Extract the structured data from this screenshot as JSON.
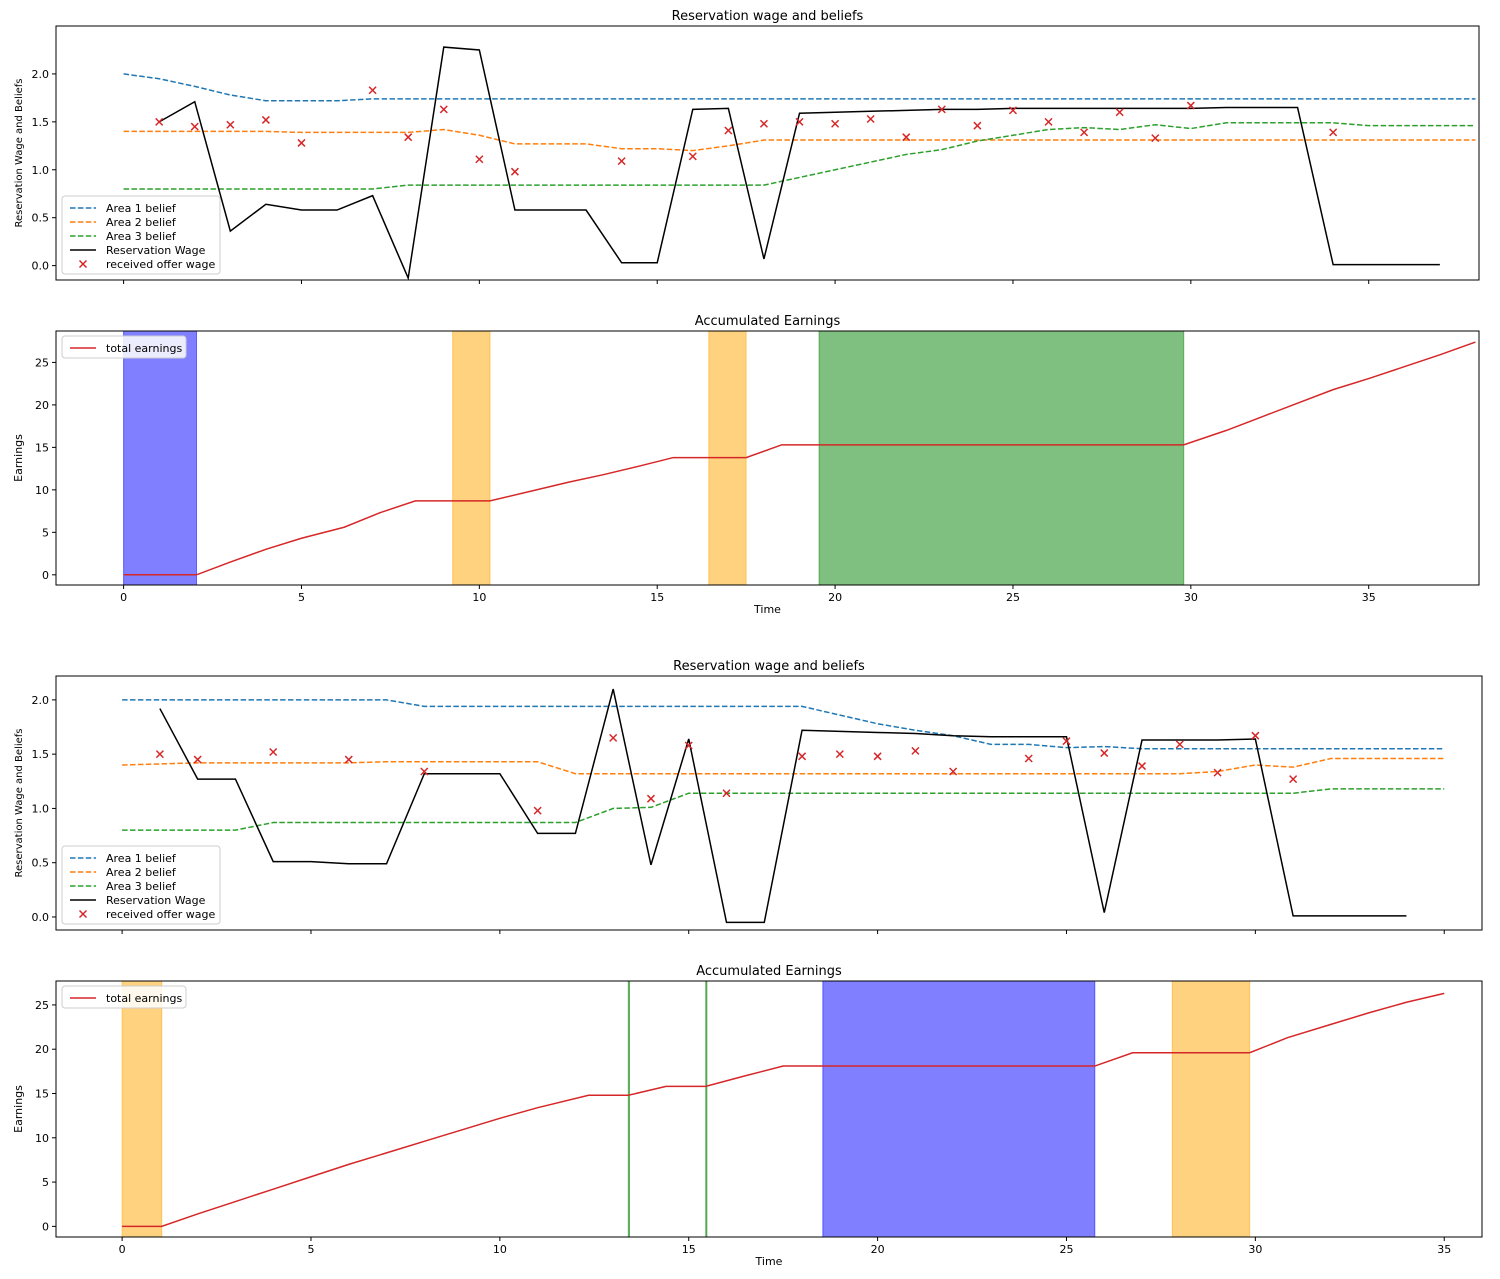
{
  "chart_data": [
    {
      "type": "line",
      "title": "Reservation wage and beliefs",
      "xlabel": "",
      "ylabel": "Reservation Wage and Beliefs",
      "xlim": [
        -1.9,
        38.1
      ],
      "ylim": [
        -0.15,
        2.5
      ],
      "xticks": [
        0,
        5,
        10,
        15,
        20,
        25,
        30,
        35
      ],
      "xtick_labels_shown": false,
      "yticks": [
        0.0,
        0.5,
        1.0,
        1.5,
        2.0
      ],
      "ytick_labels": [
        "0.0",
        "0.5",
        "1.0",
        "1.5",
        "2.0"
      ],
      "legend_position": "lower-left",
      "series": [
        {
          "name": "Area 1 belief",
          "style": "dashed",
          "color": "#1f77b4",
          "x": [
            0,
            1,
            2,
            3,
            4,
            5,
            6,
            7,
            8,
            9,
            10,
            11,
            12,
            13,
            14,
            15,
            16,
            17,
            18,
            19,
            20,
            21,
            22,
            23,
            24,
            25,
            26,
            27,
            28,
            29,
            30,
            31,
            32,
            33,
            34,
            35,
            36,
            37,
            38
          ],
          "y": [
            2.0,
            1.95,
            1.87,
            1.78,
            1.72,
            1.72,
            1.72,
            1.74,
            1.74,
            1.74,
            1.74,
            1.74,
            1.74,
            1.74,
            1.74,
            1.74,
            1.74,
            1.74,
            1.74,
            1.74,
            1.74,
            1.74,
            1.74,
            1.74,
            1.74,
            1.74,
            1.74,
            1.74,
            1.74,
            1.74,
            1.74,
            1.74,
            1.74,
            1.74,
            1.74,
            1.74,
            1.74,
            1.74,
            1.74
          ]
        },
        {
          "name": "Area 2 belief",
          "style": "dashed",
          "color": "#ff7f0e",
          "x": [
            0,
            1,
            2,
            3,
            4,
            5,
            6,
            7,
            8,
            9,
            10,
            11,
            12,
            13,
            14,
            15,
            16,
            17,
            18,
            19,
            20,
            21,
            22,
            23,
            24,
            25,
            26,
            27,
            28,
            29,
            30,
            31,
            32,
            33,
            34,
            35,
            36,
            37,
            38
          ],
          "y": [
            1.4,
            1.4,
            1.4,
            1.4,
            1.4,
            1.39,
            1.39,
            1.39,
            1.39,
            1.42,
            1.36,
            1.27,
            1.27,
            1.27,
            1.22,
            1.22,
            1.2,
            1.25,
            1.31,
            1.31,
            1.31,
            1.31,
            1.31,
            1.31,
            1.31,
            1.31,
            1.31,
            1.31,
            1.31,
            1.31,
            1.31,
            1.31,
            1.31,
            1.31,
            1.31,
            1.31,
            1.31,
            1.31,
            1.31
          ]
        },
        {
          "name": "Area 3 belief",
          "style": "dashed",
          "color": "#2ca02c",
          "x": [
            0,
            1,
            2,
            3,
            4,
            5,
            6,
            7,
            8,
            9,
            10,
            11,
            12,
            13,
            14,
            15,
            16,
            17,
            18,
            19,
            20,
            21,
            22,
            23,
            24,
            25,
            26,
            27,
            28,
            29,
            30,
            31,
            32,
            33,
            34,
            35,
            36,
            37,
            38
          ],
          "y": [
            0.8,
            0.8,
            0.8,
            0.8,
            0.8,
            0.8,
            0.8,
            0.8,
            0.84,
            0.84,
            0.84,
            0.84,
            0.84,
            0.84,
            0.84,
            0.84,
            0.84,
            0.84,
            0.84,
            0.92,
            1.0,
            1.08,
            1.16,
            1.21,
            1.3,
            1.36,
            1.42,
            1.44,
            1.42,
            1.47,
            1.43,
            1.49,
            1.49,
            1.49,
            1.49,
            1.46,
            1.46,
            1.46,
            1.46
          ]
        },
        {
          "name": "Reservation Wage",
          "style": "solid",
          "color": "#000000",
          "x": [
            1,
            2,
            3,
            4,
            5,
            6,
            7,
            8,
            9,
            10,
            11,
            12,
            13,
            14,
            15,
            16,
            17,
            18,
            19,
            20,
            21,
            22,
            23,
            24,
            25,
            26,
            27,
            28,
            29,
            30,
            31,
            32,
            33,
            34,
            35,
            36,
            37
          ],
          "y": [
            1.5,
            1.71,
            0.36,
            0.64,
            0.58,
            0.58,
            0.73,
            -0.13,
            2.28,
            2.25,
            0.58,
            0.58,
            0.58,
            0.03,
            0.03,
            1.63,
            1.64,
            0.07,
            1.59,
            1.6,
            1.61,
            1.62,
            1.63,
            1.63,
            1.64,
            1.64,
            1.64,
            1.64,
            1.64,
            1.64,
            1.65,
            1.65,
            1.65,
            0.01,
            0.01,
            0.01,
            0.01
          ]
        },
        {
          "name": "received offer wage",
          "style": "marker-x",
          "color": "#d62728",
          "x": [
            1,
            2,
            3,
            4,
            5,
            7,
            8,
            9,
            10,
            11,
            14,
            16,
            17,
            18,
            19,
            20,
            21,
            22,
            23,
            24,
            25,
            26,
            27,
            28,
            29,
            30,
            34
          ],
          "y": [
            1.5,
            1.45,
            1.47,
            1.52,
            1.28,
            1.83,
            1.34,
            1.63,
            1.11,
            0.98,
            1.09,
            1.14,
            1.41,
            1.48,
            1.5,
            1.48,
            1.53,
            1.34,
            1.63,
            1.46,
            1.62,
            1.5,
            1.39,
            1.6,
            1.33,
            1.67,
            1.39
          ]
        }
      ]
    },
    {
      "type": "line",
      "title": "Accumulated Earnings",
      "xlabel": "Time",
      "ylabel": "Earnings",
      "xlim": [
        -1.9,
        38.1
      ],
      "ylim": [
        -1.2,
        28.7
      ],
      "xticks": [
        0,
        5,
        10,
        15,
        20,
        25,
        30,
        35
      ],
      "xtick_labels": [
        "0",
        "5",
        "10",
        "15",
        "20",
        "25",
        "30",
        "35"
      ],
      "yticks": [
        0,
        5,
        10,
        15,
        20,
        25
      ],
      "ytick_labels": [
        "0",
        "5",
        "10",
        "15",
        "20",
        "25"
      ],
      "legend_position": "top-left",
      "shaded_spans": [
        {
          "x0": 0,
          "x1": 2.05,
          "color": "#0000ff",
          "alpha": 0.5
        },
        {
          "x0": 9.25,
          "x1": 10.3,
          "color": "#ffa500",
          "alpha": 0.5
        },
        {
          "x0": 16.45,
          "x1": 17.5,
          "color": "#ffa500",
          "alpha": 0.5
        },
        {
          "x0": 19.55,
          "x1": 29.8,
          "color": "#008000",
          "alpha": 0.5
        }
      ],
      "series": [
        {
          "name": "total earnings",
          "style": "solid",
          "color": "#d62728",
          "x": [
            0,
            2.05,
            3,
            4,
            5,
            6.2,
            7.2,
            8.2,
            9.25,
            10.3,
            11.5,
            12.5,
            13.5,
            14.5,
            15.45,
            16.45,
            17.5,
            18.5,
            19.55,
            29.8,
            31,
            32,
            33,
            34,
            35,
            36,
            37,
            38
          ],
          "y": [
            0,
            0,
            1.5,
            3.0,
            4.3,
            5.6,
            7.3,
            8.7,
            8.7,
            8.7,
            9.9,
            10.9,
            11.8,
            12.8,
            13.8,
            13.8,
            13.8,
            15.3,
            15.3,
            15.3,
            17.0,
            18.6,
            20.2,
            21.8,
            23.1,
            24.5,
            25.9,
            27.4
          ]
        }
      ]
    },
    {
      "type": "line",
      "title": "Reservation wage and beliefs",
      "xlabel": "",
      "ylabel": "Reservation Wage and Beliefs",
      "xlim": [
        -1.75,
        36.0
      ],
      "ylim": [
        -0.12,
        2.22
      ],
      "xticks": [
        0,
        5,
        10,
        15,
        20,
        25,
        30,
        35
      ],
      "xtick_labels_shown": false,
      "yticks": [
        0.0,
        0.5,
        1.0,
        1.5,
        2.0
      ],
      "ytick_labels": [
        "0.0",
        "0.5",
        "1.0",
        "1.5",
        "2.0"
      ],
      "legend_position": "lower-left",
      "series": [
        {
          "name": "Area 1 belief",
          "style": "dashed",
          "color": "#1f77b4",
          "x": [
            0,
            1,
            2,
            3,
            4,
            5,
            6,
            7,
            8,
            9,
            10,
            11,
            12,
            13,
            14,
            15,
            16,
            17,
            18,
            19,
            20,
            21,
            22,
            23,
            24,
            25,
            26,
            27,
            28,
            29,
            30,
            31,
            32,
            33,
            34,
            35
          ],
          "y": [
            2.0,
            2.0,
            2.0,
            2.0,
            2.0,
            2.0,
            2.0,
            2.0,
            1.94,
            1.94,
            1.94,
            1.94,
            1.94,
            1.94,
            1.94,
            1.94,
            1.94,
            1.94,
            1.94,
            1.86,
            1.78,
            1.72,
            1.67,
            1.59,
            1.59,
            1.56,
            1.57,
            1.55,
            1.55,
            1.55,
            1.55,
            1.55,
            1.55,
            1.55,
            1.55,
            1.55
          ]
        },
        {
          "name": "Area 2 belief",
          "style": "dashed",
          "color": "#ff7f0e",
          "x": [
            0,
            1,
            2,
            3,
            4,
            5,
            6,
            7,
            8,
            9,
            10,
            11,
            12,
            13,
            14,
            15,
            16,
            17,
            18,
            19,
            20,
            21,
            22,
            23,
            24,
            25,
            26,
            27,
            28,
            29,
            30,
            31,
            32,
            33,
            34,
            35
          ],
          "y": [
            1.4,
            1.41,
            1.42,
            1.42,
            1.42,
            1.42,
            1.42,
            1.43,
            1.43,
            1.43,
            1.43,
            1.43,
            1.32,
            1.32,
            1.32,
            1.32,
            1.32,
            1.32,
            1.32,
            1.32,
            1.32,
            1.32,
            1.32,
            1.32,
            1.32,
            1.32,
            1.32,
            1.32,
            1.32,
            1.34,
            1.4,
            1.38,
            1.46,
            1.46,
            1.46,
            1.46
          ]
        },
        {
          "name": "Area 3 belief",
          "style": "dashed",
          "color": "#2ca02c",
          "x": [
            0,
            1,
            2,
            3,
            4,
            5,
            6,
            7,
            8,
            9,
            10,
            11,
            12,
            13,
            14,
            15,
            16,
            17,
            18,
            19,
            20,
            21,
            22,
            23,
            24,
            25,
            26,
            27,
            28,
            29,
            30,
            31,
            32,
            33,
            34,
            35
          ],
          "y": [
            0.8,
            0.8,
            0.8,
            0.8,
            0.87,
            0.87,
            0.87,
            0.87,
            0.87,
            0.87,
            0.87,
            0.87,
            0.87,
            1.0,
            1.01,
            1.14,
            1.14,
            1.14,
            1.14,
            1.14,
            1.14,
            1.14,
            1.14,
            1.14,
            1.14,
            1.14,
            1.14,
            1.14,
            1.14,
            1.14,
            1.14,
            1.14,
            1.18,
            1.18,
            1.18,
            1.18
          ]
        },
        {
          "name": "Reservation Wage",
          "style": "solid",
          "color": "#000000",
          "x": [
            1,
            2,
            3,
            4,
            5,
            6,
            7,
            8,
            9,
            10,
            11,
            12,
            13,
            14,
            15,
            16,
            17,
            18,
            19,
            20,
            21,
            22,
            23,
            24,
            25,
            26,
            27,
            28,
            29,
            30,
            31,
            32,
            33,
            34
          ],
          "y": [
            1.92,
            1.27,
            1.27,
            0.51,
            0.51,
            0.49,
            0.49,
            1.32,
            1.32,
            1.32,
            0.77,
            0.77,
            2.1,
            0.48,
            1.64,
            -0.05,
            -0.05,
            1.72,
            1.71,
            1.7,
            1.69,
            1.67,
            1.66,
            1.66,
            1.66,
            0.04,
            1.63,
            1.63,
            1.63,
            1.64,
            0.01,
            0.01,
            0.01,
            0.01
          ]
        },
        {
          "name": "received offer wage",
          "style": "marker-x",
          "color": "#d62728",
          "x": [
            1,
            2,
            4,
            6,
            8,
            11,
            13,
            14,
            15,
            16,
            18,
            19,
            20,
            21,
            22,
            24,
            25,
            26,
            27,
            28,
            29,
            30,
            31
          ],
          "y": [
            1.5,
            1.45,
            1.52,
            1.45,
            1.34,
            0.98,
            1.65,
            1.09,
            1.58,
            1.14,
            1.48,
            1.5,
            1.48,
            1.53,
            1.34,
            1.46,
            1.62,
            1.51,
            1.39,
            1.59,
            1.33,
            1.67,
            1.27
          ]
        }
      ]
    },
    {
      "type": "line",
      "title": "Accumulated Earnings",
      "xlabel": "Time",
      "ylabel": "Earnings",
      "xlim": [
        -1.75,
        36.0
      ],
      "ylim": [
        -1.2,
        27.7
      ],
      "xticks": [
        0,
        5,
        10,
        15,
        20,
        25,
        30,
        35
      ],
      "xtick_labels": [
        "0",
        "5",
        "10",
        "15",
        "20",
        "25",
        "30",
        "35"
      ],
      "yticks": [
        0,
        5,
        10,
        15,
        20,
        25
      ],
      "ytick_labels": [
        "0",
        "5",
        "10",
        "15",
        "20",
        "25"
      ],
      "legend_position": "top-left",
      "shaded_spans": [
        {
          "x0": 0,
          "x1": 1.05,
          "color": "#ffa500",
          "alpha": 0.5
        },
        {
          "x0": 13.4,
          "x1": 13.42,
          "color": "#008000",
          "alpha": 0.5
        },
        {
          "x0": 15.45,
          "x1": 15.47,
          "color": "#008000",
          "alpha": 0.5
        },
        {
          "x0": 18.55,
          "x1": 25.75,
          "color": "#0000ff",
          "alpha": 0.5
        },
        {
          "x0": 27.8,
          "x1": 29.85,
          "color": "#ffa500",
          "alpha": 0.5
        }
      ],
      "series": [
        {
          "name": "total earnings",
          "style": "solid",
          "color": "#d62728",
          "x": [
            0,
            1.05,
            2,
            3,
            4,
            5,
            6,
            7,
            8,
            9,
            10,
            11,
            12.35,
            13.4,
            14.4,
            15.45,
            16.5,
            17.5,
            18.55,
            25.75,
            26.75,
            27.8,
            29.85,
            30.85,
            32,
            33,
            34,
            35
          ],
          "y": [
            0,
            0,
            1.4,
            2.8,
            4.2,
            5.6,
            7.0,
            8.3,
            9.6,
            10.9,
            12.2,
            13.4,
            14.8,
            14.8,
            15.8,
            15.8,
            17.0,
            18.1,
            18.1,
            18.1,
            19.6,
            19.6,
            19.6,
            21.3,
            22.8,
            24.1,
            25.3,
            26.3
          ]
        }
      ]
    }
  ]
}
